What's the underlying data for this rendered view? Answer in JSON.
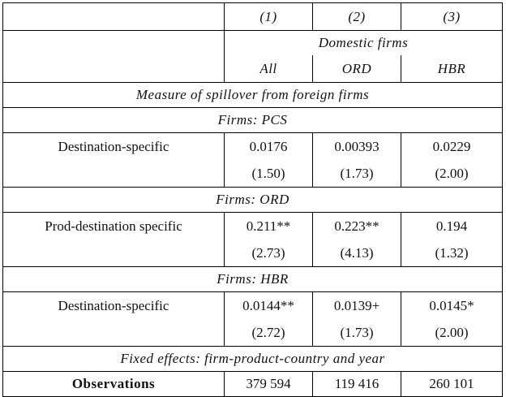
{
  "table": {
    "column_numbers": [
      "(1)",
      "(2)",
      "(3)"
    ],
    "column_group": "Domestic firms",
    "column_labels": [
      "All",
      "ORD",
      "HBR"
    ],
    "section_title": "Measure of spillover from foreign firms",
    "panels": [
      {
        "title": "Firms: PCS",
        "label": "Destination-specific",
        "estimates": [
          "0.0176",
          "0.00393",
          "0.0229"
        ],
        "t_stats": [
          "(1.50)",
          "(1.73)",
          "(2.00)"
        ]
      },
      {
        "title": "Firms: ORD",
        "label": "Prod-destination specific",
        "estimates": [
          "0.211**",
          "0.223**",
          "0.194"
        ],
        "t_stats": [
          "(2.73)",
          "(4.13)",
          "(1.32)"
        ]
      },
      {
        "title": "Firms: HBR",
        "label": "Destination-specific",
        "estimates": [
          "0.0144**",
          "0.0139+",
          "0.0145*"
        ],
        "t_stats": [
          "(2.72)",
          "(1.73)",
          "(2.00)"
        ]
      }
    ],
    "fixed_effects": "Fixed effects: firm-product-country and year",
    "observations": {
      "label": "Observations",
      "values": [
        "379 594",
        "119 416",
        "260 101"
      ]
    }
  }
}
